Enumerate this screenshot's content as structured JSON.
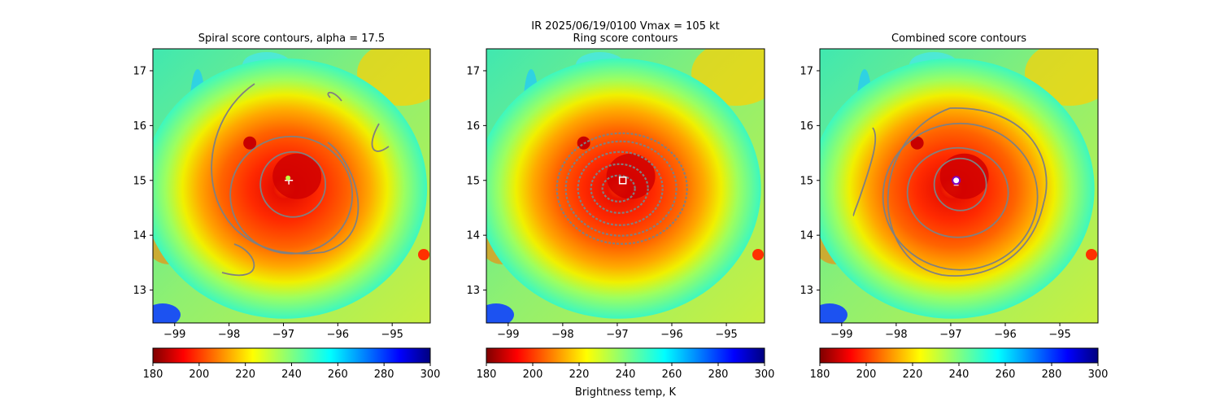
{
  "suptitle": {
    "line1": "IR  2025/06/19/0100    Vmax = 105 kt"
  },
  "colorbar_label": "Brightness temp, K",
  "colormap": [
    "#7f0000",
    "#ff0000",
    "#ff8000",
    "#ffff00",
    "#80ff80",
    "#00ffff",
    "#0080ff",
    "#0000ff",
    "#00007f"
  ],
  "contour_color": "#808080",
  "chart_data": [
    {
      "type": "heatmap",
      "title": "Spiral score contours, alpha = 17.5",
      "xlim": [
        -99.4,
        -94.3
      ],
      "ylim": [
        12.4,
        17.4
      ],
      "xticks": [
        -99,
        -98,
        -97,
        -96,
        -95
      ],
      "yticks": [
        13,
        14,
        15,
        16,
        17
      ],
      "xticklabels": [
        "−99",
        "−98",
        "−97",
        "−96",
        "−95"
      ],
      "yticklabels": [
        "13",
        "14",
        "15",
        "16",
        "17"
      ],
      "colorbar": {
        "range": [
          180,
          300
        ],
        "ticks": [
          180,
          200,
          220,
          240,
          260,
          280,
          300
        ],
        "ticklabels": [
          "180",
          "200",
          "220",
          "240",
          "260",
          "280",
          "300"
        ]
      },
      "storm_center": {
        "lon": -96.9,
        "lat": 15.0
      },
      "marker": "cross",
      "contours": "spiral"
    },
    {
      "type": "heatmap",
      "title": "Ring score contours",
      "xlim": [
        -99.4,
        -94.3
      ],
      "ylim": [
        12.4,
        17.4
      ],
      "xticks": [
        -99,
        -98,
        -97,
        -96,
        -95
      ],
      "yticks": [
        13,
        14,
        15,
        16,
        17
      ],
      "xticklabels": [
        "−99",
        "−98",
        "−97",
        "−96",
        "−95"
      ],
      "yticklabels": [
        "13",
        "14",
        "15",
        "16",
        "17"
      ],
      "colorbar": {
        "range": [
          180,
          300
        ],
        "ticks": [
          180,
          200,
          220,
          240,
          260,
          280,
          300
        ],
        "ticklabels": [
          "180",
          "200",
          "220",
          "240",
          "260",
          "280",
          "300"
        ]
      },
      "storm_center": {
        "lon": -96.9,
        "lat": 15.0
      },
      "marker": "square",
      "contours": "ring"
    },
    {
      "type": "heatmap",
      "title": "Combined score contours",
      "xlim": [
        -99.4,
        -94.3
      ],
      "ylim": [
        12.4,
        17.4
      ],
      "xticks": [
        -99,
        -98,
        -97,
        -96,
        -95
      ],
      "yticks": [
        13,
        14,
        15,
        16,
        17
      ],
      "xticklabels": [
        "−99",
        "−98",
        "−97",
        "−96",
        "−95"
      ],
      "yticklabels": [
        "13",
        "14",
        "15",
        "16",
        "17"
      ],
      "colorbar": {
        "range": [
          180,
          300
        ],
        "ticks": [
          180,
          200,
          220,
          240,
          260,
          280,
          300
        ],
        "ticklabels": [
          "180",
          "200",
          "220",
          "240",
          "260",
          "280",
          "300"
        ]
      },
      "storm_center": {
        "lon": -96.9,
        "lat": 15.0
      },
      "marker": "circle",
      "contours": "combined"
    }
  ]
}
